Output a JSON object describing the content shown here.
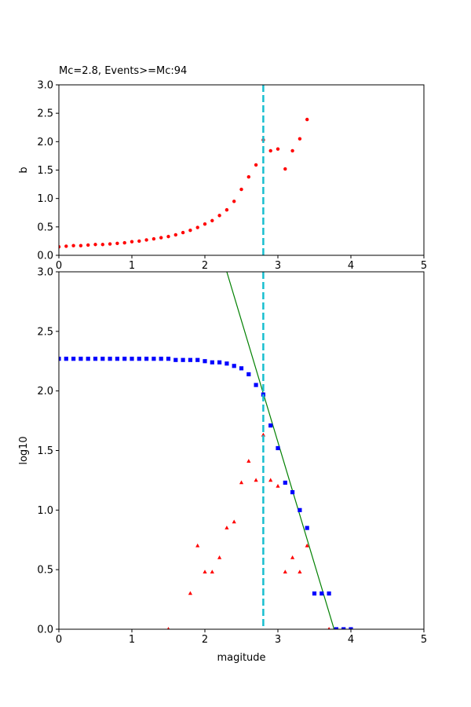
{
  "title": "Mc=2.8, Events>=Mc:94",
  "chart_data": [
    {
      "type": "scatter",
      "ylabel": "b",
      "xlabel": "",
      "xlim": [
        0,
        5
      ],
      "ylim": [
        0,
        3
      ],
      "xticks": [
        "0",
        "1",
        "2",
        "3",
        "4",
        "5"
      ],
      "yticks": [
        "0.0",
        "0.5",
        "1.0",
        "1.5",
        "2.0",
        "2.5",
        "3.0"
      ],
      "mc_line": {
        "x": 2.8,
        "color": "#17becf",
        "style": "dashed"
      },
      "series": [
        {
          "marker": "circle",
          "color": "#ff0000",
          "x": [
            0.0,
            0.1,
            0.2,
            0.3,
            0.4,
            0.5,
            0.6,
            0.7,
            0.8,
            0.9,
            1.0,
            1.1,
            1.2,
            1.3,
            1.4,
            1.5,
            1.6,
            1.7,
            1.8,
            1.9,
            2.0,
            2.1,
            2.2,
            2.3,
            2.4,
            2.5,
            2.6,
            2.7,
            2.8,
            2.9,
            3.0,
            3.1,
            3.2,
            3.3,
            3.4
          ],
          "y": [
            0.15,
            0.16,
            0.17,
            0.17,
            0.18,
            0.19,
            0.19,
            0.2,
            0.21,
            0.22,
            0.24,
            0.25,
            0.27,
            0.29,
            0.31,
            0.33,
            0.36,
            0.4,
            0.44,
            0.49,
            0.55,
            0.61,
            0.7,
            0.8,
            0.95,
            1.16,
            1.38,
            1.59,
            2.03,
            1.84,
            1.87,
            1.52,
            1.84,
            2.05,
            2.39
          ]
        }
      ]
    },
    {
      "type": "scatter",
      "xlabel": "magitude",
      "ylabel": "log10",
      "xlim": [
        0,
        5
      ],
      "ylim": [
        0,
        3
      ],
      "xticks": [
        "0",
        "1",
        "2",
        "3",
        "4",
        "5"
      ],
      "yticks": [
        "0.0",
        "0.5",
        "1.0",
        "1.5",
        "2.0",
        "2.5",
        "3.0"
      ],
      "mc_line": {
        "x": 2.8,
        "color": "#17becf",
        "style": "dashed"
      },
      "fit_line": {
        "color": "#008000",
        "x": [
          2.3,
          3.77
        ],
        "y": [
          3.0,
          0.0
        ]
      },
      "series": [
        {
          "marker": "square",
          "color": "#0000ff",
          "x": [
            0.0,
            0.1,
            0.2,
            0.3,
            0.4,
            0.5,
            0.6,
            0.7,
            0.8,
            0.9,
            1.0,
            1.1,
            1.2,
            1.3,
            1.4,
            1.5,
            1.6,
            1.7,
            1.8,
            1.9,
            2.0,
            2.1,
            2.2,
            2.3,
            2.4,
            2.5,
            2.6,
            2.7,
            2.8,
            2.9,
            3.0,
            3.1,
            3.2,
            3.3,
            3.4,
            3.5,
            3.6,
            3.7,
            3.8,
            3.9,
            4.0
          ],
          "y": [
            2.27,
            2.27,
            2.27,
            2.27,
            2.27,
            2.27,
            2.27,
            2.27,
            2.27,
            2.27,
            2.27,
            2.27,
            2.27,
            2.27,
            2.27,
            2.27,
            2.26,
            2.26,
            2.26,
            2.26,
            2.25,
            2.24,
            2.24,
            2.23,
            2.21,
            2.19,
            2.14,
            2.05,
            1.97,
            1.71,
            1.52,
            1.23,
            1.15,
            1.0,
            0.85,
            0.3,
            0.3,
            0.3,
            0.0,
            0.0,
            0.0
          ]
        },
        {
          "marker": "triangle",
          "color": "#ff0000",
          "x": [
            1.5,
            1.8,
            1.9,
            2.0,
            2.1,
            2.2,
            2.3,
            2.4,
            2.5,
            2.6,
            2.7,
            2.8,
            2.9,
            3.0,
            3.1,
            3.2,
            3.3,
            3.4,
            3.7
          ],
          "y": [
            0.0,
            0.3,
            0.7,
            0.48,
            0.48,
            0.6,
            0.85,
            0.9,
            1.23,
            1.41,
            1.25,
            1.63,
            1.25,
            1.2,
            0.48,
            0.6,
            0.48,
            0.7,
            0.0
          ]
        }
      ]
    }
  ]
}
